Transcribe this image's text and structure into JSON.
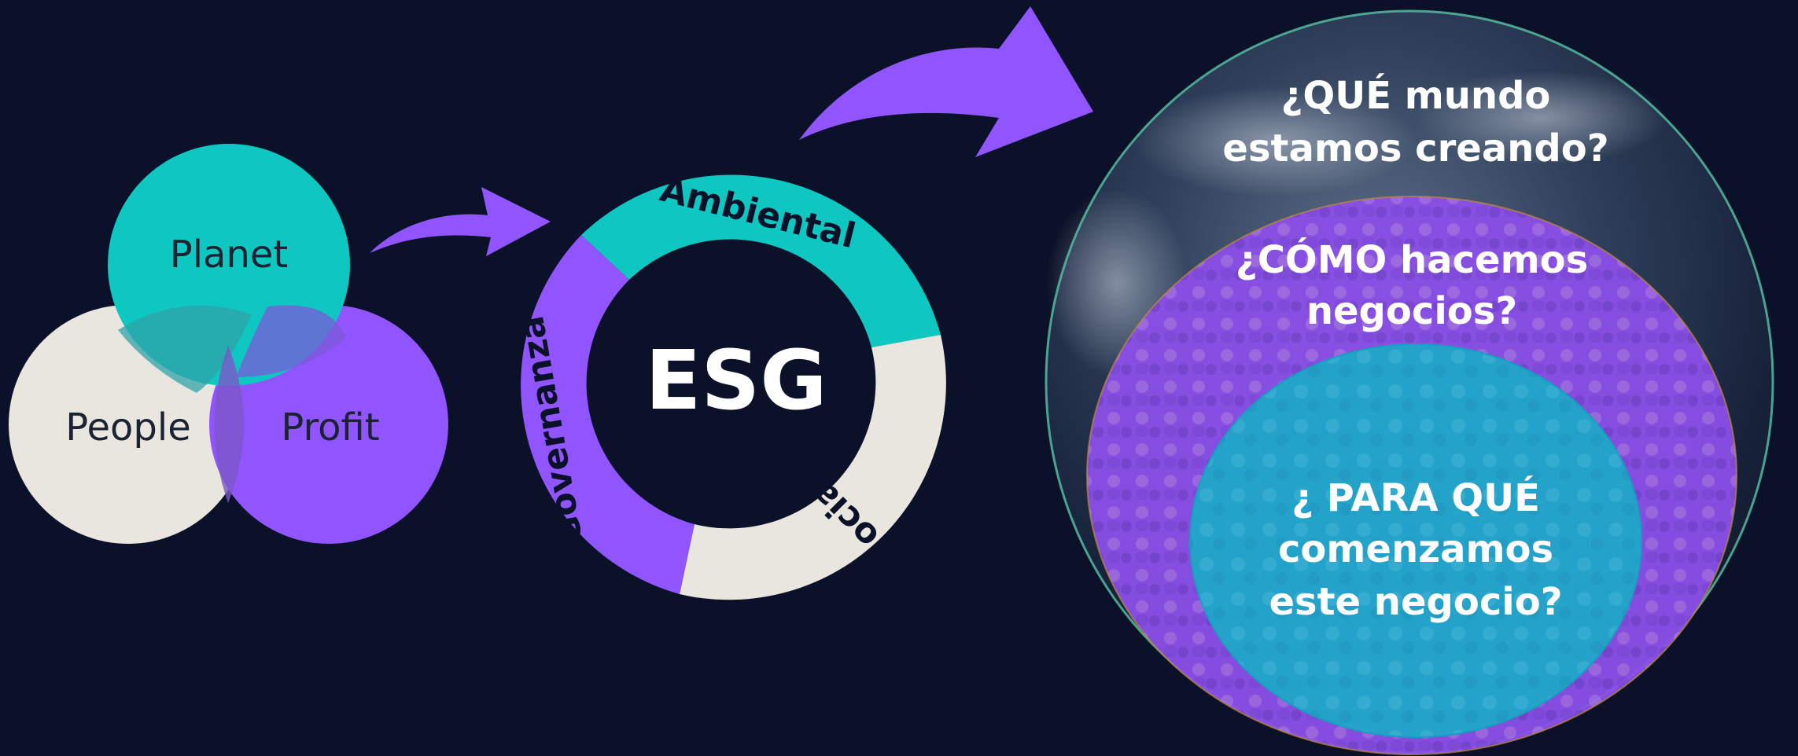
{
  "venn": {
    "planet": "Planet",
    "people": "People",
    "profit": "Profit"
  },
  "esg_ring": {
    "center": "ESG",
    "ambiental": "Ambiental",
    "social": "Social",
    "governanza": "Governanza"
  },
  "globe": {
    "outer": [
      "¿QUÉ mundo",
      "estamos creando?"
    ],
    "middle": [
      "¿CÓMO hacemos",
      "negocios?"
    ],
    "inner": [
      "¿ PARA QUÉ",
      "comenzamos",
      "este negocio?"
    ]
  },
  "colors": {
    "background": "#0b1128",
    "teal": "#0fc7c1",
    "purple": "#9155ff",
    "cream": "#e9e6df",
    "inner_blue": "#1fa7c9"
  }
}
